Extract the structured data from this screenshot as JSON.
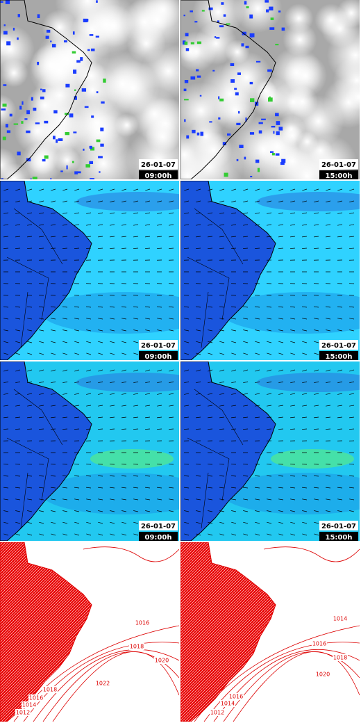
{
  "panels": [
    [
      {
        "date": "26-01-07",
        "time": "09:00h"
      },
      {
        "date": "26-01-07",
        "time": "15:00h"
      }
    ],
    [
      {
        "date": "26-01-07",
        "time": "09:00h"
      },
      {
        "date": "26-01-07",
        "time": "15:00h"
      }
    ],
    [
      {
        "date": "26-01-07",
        "time": "09:00h"
      },
      {
        "date": "26-01-07",
        "time": "15:00h"
      }
    ]
  ],
  "isobars": [
    [
      1016,
      1018,
      1020,
      1022,
      1018,
      1016,
      1014,
      1012
    ],
    [
      1014,
      1016,
      1018,
      1020,
      1016,
      1014,
      1012
    ]
  ]
}
